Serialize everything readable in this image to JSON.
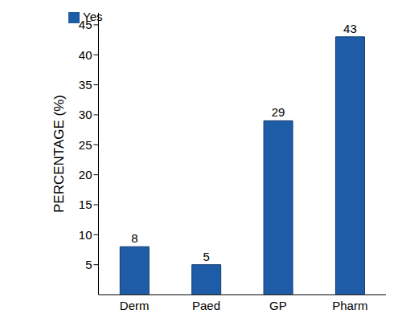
{
  "chart_data": {
    "type": "bar",
    "categories": [
      "Derm",
      "Paed",
      "GP",
      "Pharm"
    ],
    "series": [
      {
        "name": "Yes",
        "color": "#1f5ca8",
        "values": [
          8,
          5,
          29,
          43
        ]
      }
    ],
    "y_label": "PERCENTAGE (%)",
    "ylim": [
      0,
      47
    ],
    "yticks": [
      5,
      10,
      15,
      20,
      25,
      30,
      35,
      40,
      45
    ],
    "grid": false,
    "legend": "upper left",
    "data_labels": true
  }
}
